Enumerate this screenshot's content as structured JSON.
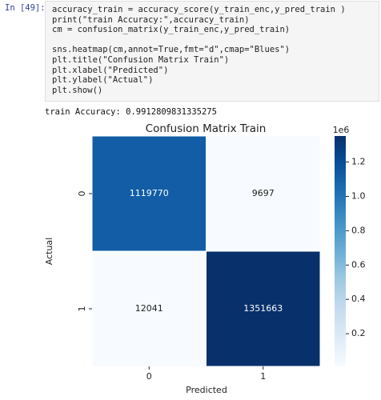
{
  "cell": {
    "prompt": "In [49]:",
    "code": [
      [
        "accuracy_train = accuracy_score(y_train_enc,y_pred_train )",
        "print(\"train Accuracy:\",accuracy_train)",
        "cm = confusion_matrix(y_train_enc,y_pred_train)"
      ],
      [
        "sns.heatmap(cm,annot=True,fmt=\"d\",cmap=\"Blues\")",
        "plt.title(\"Confusion Matrix Train\")",
        "plt.xlabel(\"Predicted\")",
        "plt.ylabel(\"Actual\")",
        "plt.show()"
      ]
    ]
  },
  "output": "train Accuracy: 0.9912809831335275",
  "chart_data": {
    "type": "heatmap",
    "title": "Confusion Matrix Train",
    "xlabel": "Predicted",
    "ylabel": "Actual",
    "x_categories": [
      "0",
      "1"
    ],
    "y_categories": [
      "0",
      "1"
    ],
    "values": [
      [
        1119770,
        9697
      ],
      [
        12041,
        1351663
      ]
    ],
    "colormap": "Blues",
    "clim": [
      9697,
      1351663
    ],
    "colorbar_offset_label": "1e6",
    "colorbar_ticks": [
      {
        "value": 200000,
        "label": "0.2"
      },
      {
        "value": 400000,
        "label": "0.4"
      },
      {
        "value": 600000,
        "label": "0.6"
      },
      {
        "value": 800000,
        "label": "0.8"
      },
      {
        "value": 1000000,
        "label": "1.0"
      },
      {
        "value": 1200000,
        "label": "1.2"
      }
    ]
  }
}
